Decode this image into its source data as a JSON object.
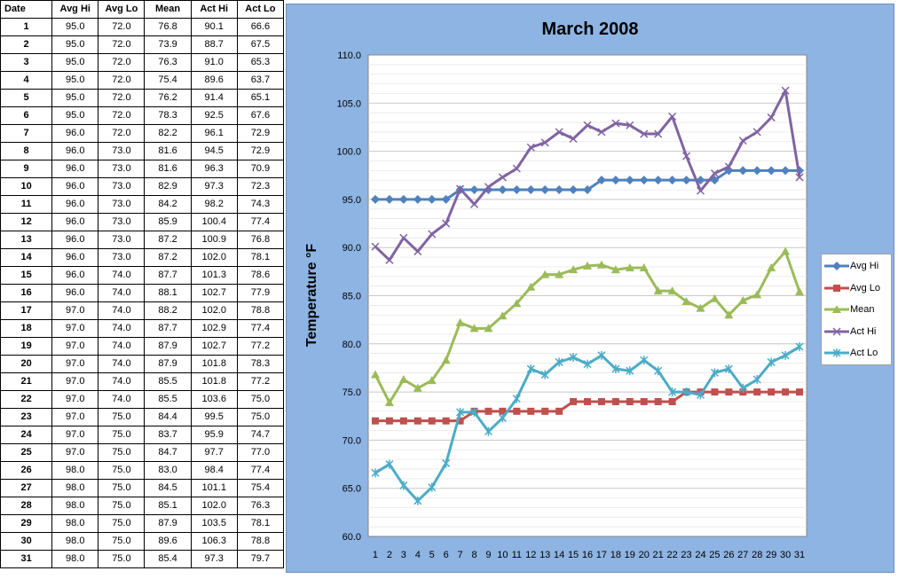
{
  "table": {
    "headers": [
      "Date",
      "Avg Hi",
      "Avg Lo",
      "Mean",
      "Act Hi",
      "Act Lo"
    ],
    "rows": [
      [
        "1",
        "95.0",
        "72.0",
        "76.8",
        "90.1",
        "66.6"
      ],
      [
        "2",
        "95.0",
        "72.0",
        "73.9",
        "88.7",
        "67.5"
      ],
      [
        "3",
        "95.0",
        "72.0",
        "76.3",
        "91.0",
        "65.3"
      ],
      [
        "4",
        "95.0",
        "72.0",
        "75.4",
        "89.6",
        "63.7"
      ],
      [
        "5",
        "95.0",
        "72.0",
        "76.2",
        "91.4",
        "65.1"
      ],
      [
        "6",
        "95.0",
        "72.0",
        "78.3",
        "92.5",
        "67.6"
      ],
      [
        "7",
        "96.0",
        "72.0",
        "82.2",
        "96.1",
        "72.9"
      ],
      [
        "8",
        "96.0",
        "73.0",
        "81.6",
        "94.5",
        "72.9"
      ],
      [
        "9",
        "96.0",
        "73.0",
        "81.6",
        "96.3",
        "70.9"
      ],
      [
        "10",
        "96.0",
        "73.0",
        "82.9",
        "97.3",
        "72.3"
      ],
      [
        "11",
        "96.0",
        "73.0",
        "84.2",
        "98.2",
        "74.3"
      ],
      [
        "12",
        "96.0",
        "73.0",
        "85.9",
        "100.4",
        "77.4"
      ],
      [
        "13",
        "96.0",
        "73.0",
        "87.2",
        "100.9",
        "76.8"
      ],
      [
        "14",
        "96.0",
        "73.0",
        "87.2",
        "102.0",
        "78.1"
      ],
      [
        "15",
        "96.0",
        "74.0",
        "87.7",
        "101.3",
        "78.6"
      ],
      [
        "16",
        "96.0",
        "74.0",
        "88.1",
        "102.7",
        "77.9"
      ],
      [
        "17",
        "97.0",
        "74.0",
        "88.2",
        "102.0",
        "78.8"
      ],
      [
        "18",
        "97.0",
        "74.0",
        "87.7",
        "102.9",
        "77.4"
      ],
      [
        "19",
        "97.0",
        "74.0",
        "87.9",
        "102.7",
        "77.2"
      ],
      [
        "20",
        "97.0",
        "74.0",
        "87.9",
        "101.8",
        "78.3"
      ],
      [
        "21",
        "97.0",
        "74.0",
        "85.5",
        "101.8",
        "77.2"
      ],
      [
        "22",
        "97.0",
        "74.0",
        "85.5",
        "103.6",
        "75.0"
      ],
      [
        "23",
        "97.0",
        "75.0",
        "84.4",
        "99.5",
        "75.0"
      ],
      [
        "24",
        "97.0",
        "75.0",
        "83.7",
        "95.9",
        "74.7"
      ],
      [
        "25",
        "97.0",
        "75.0",
        "84.7",
        "97.7",
        "77.0"
      ],
      [
        "26",
        "98.0",
        "75.0",
        "83.0",
        "98.4",
        "77.4"
      ],
      [
        "27",
        "98.0",
        "75.0",
        "84.5",
        "101.1",
        "75.4"
      ],
      [
        "28",
        "98.0",
        "75.0",
        "85.1",
        "102.0",
        "76.3"
      ],
      [
        "29",
        "98.0",
        "75.0",
        "87.9",
        "103.5",
        "78.1"
      ],
      [
        "30",
        "98.0",
        "75.0",
        "89.6",
        "106.3",
        "78.8"
      ],
      [
        "31",
        "98.0",
        "75.0",
        "85.4",
        "97.3",
        "79.7"
      ]
    ]
  },
  "chart_data": {
    "type": "line",
    "title": "March 2008",
    "xlabel": "",
    "ylabel": "Temperature °F",
    "x": [
      1,
      2,
      3,
      4,
      5,
      6,
      7,
      8,
      9,
      10,
      11,
      12,
      13,
      14,
      15,
      16,
      17,
      18,
      19,
      20,
      21,
      22,
      23,
      24,
      25,
      26,
      27,
      28,
      29,
      30,
      31
    ],
    "ylim": [
      60,
      110
    ],
    "yticks": [
      "60.0",
      "65.0",
      "70.0",
      "75.0",
      "80.0",
      "85.0",
      "90.0",
      "95.0",
      "100.0",
      "105.0",
      "110.0"
    ],
    "grid": true,
    "legend_position": "right",
    "series": [
      {
        "name": "Avg Hi",
        "color": "#4f81bd",
        "marker": "diamond",
        "values": [
          95,
          95,
          95,
          95,
          95,
          95,
          96,
          96,
          96,
          96,
          96,
          96,
          96,
          96,
          96,
          96,
          97,
          97,
          97,
          97,
          97,
          97,
          97,
          97,
          97,
          98,
          98,
          98,
          98,
          98,
          98
        ]
      },
      {
        "name": "Avg Lo",
        "color": "#c0504d",
        "marker": "square",
        "values": [
          72,
          72,
          72,
          72,
          72,
          72,
          72,
          73,
          73,
          73,
          73,
          73,
          73,
          73,
          74,
          74,
          74,
          74,
          74,
          74,
          74,
          74,
          75,
          75,
          75,
          75,
          75,
          75,
          75,
          75,
          75
        ]
      },
      {
        "name": "Mean",
        "color": "#9bbb59",
        "marker": "triangle",
        "values": [
          76.8,
          73.9,
          76.3,
          75.4,
          76.2,
          78.3,
          82.2,
          81.6,
          81.6,
          82.9,
          84.2,
          85.9,
          87.2,
          87.2,
          87.7,
          88.1,
          88.2,
          87.7,
          87.9,
          87.9,
          85.5,
          85.5,
          84.4,
          83.7,
          84.7,
          83.0,
          84.5,
          85.1,
          87.9,
          89.6,
          85.4
        ]
      },
      {
        "name": "Act Hi",
        "color": "#8064a2",
        "marker": "x",
        "values": [
          90.1,
          88.7,
          91.0,
          89.6,
          91.4,
          92.5,
          96.1,
          94.5,
          96.3,
          97.3,
          98.2,
          100.4,
          100.9,
          102.0,
          101.3,
          102.7,
          102.0,
          102.9,
          102.7,
          101.8,
          101.8,
          103.6,
          99.5,
          95.9,
          97.7,
          98.4,
          101.1,
          102.0,
          103.5,
          106.3,
          97.3
        ]
      },
      {
        "name": "Act Lo",
        "color": "#4bacc6",
        "marker": "star",
        "values": [
          66.6,
          67.5,
          65.3,
          63.7,
          65.1,
          67.6,
          72.9,
          72.9,
          70.9,
          72.3,
          74.3,
          77.4,
          76.8,
          78.1,
          78.6,
          77.9,
          78.8,
          77.4,
          77.2,
          78.3,
          77.2,
          75.0,
          75.0,
          74.7,
          77.0,
          77.4,
          75.4,
          76.3,
          78.1,
          78.8,
          79.7
        ]
      }
    ]
  }
}
